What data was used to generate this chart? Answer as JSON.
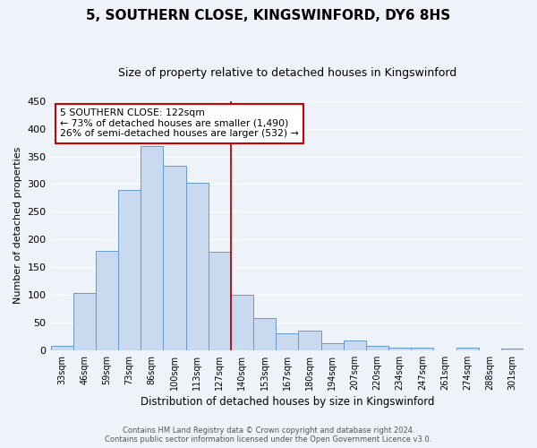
{
  "title": "5, SOUTHERN CLOSE, KINGSWINFORD, DY6 8HS",
  "subtitle": "Size of property relative to detached houses in Kingswinford",
  "xlabel": "Distribution of detached houses by size in Kingswinford",
  "ylabel": "Number of detached properties",
  "categories": [
    "33sqm",
    "46sqm",
    "59sqm",
    "73sqm",
    "86sqm",
    "100sqm",
    "113sqm",
    "127sqm",
    "140sqm",
    "153sqm",
    "167sqm",
    "180sqm",
    "194sqm",
    "207sqm",
    "220sqm",
    "234sqm",
    "247sqm",
    "261sqm",
    "274sqm",
    "288sqm",
    "301sqm"
  ],
  "values": [
    8,
    103,
    180,
    290,
    368,
    333,
    303,
    177,
    100,
    58,
    31,
    35,
    12,
    17,
    8,
    4,
    5,
    0,
    4,
    0,
    3
  ],
  "bar_color": "#c9d9ef",
  "bar_edge_color": "#6699cc",
  "ylim": [
    0,
    450
  ],
  "yticks": [
    0,
    50,
    100,
    150,
    200,
    250,
    300,
    350,
    400,
    450
  ],
  "vline_idx": 7,
  "vline_color": "#cc0000",
  "annotation_title": "5 SOUTHERN CLOSE: 122sqm",
  "annotation_line1": "← 73% of detached houses are smaller (1,490)",
  "annotation_line2": "26% of semi-detached houses are larger (532) →",
  "annotation_box_color": "#cc0000",
  "footer_line1": "Contains HM Land Registry data © Crown copyright and database right 2024.",
  "footer_line2": "Contains public sector information licensed under the Open Government Licence v3.0.",
  "title_fontsize": 11,
  "subtitle_fontsize": 9,
  "background_color": "#eef2f9"
}
